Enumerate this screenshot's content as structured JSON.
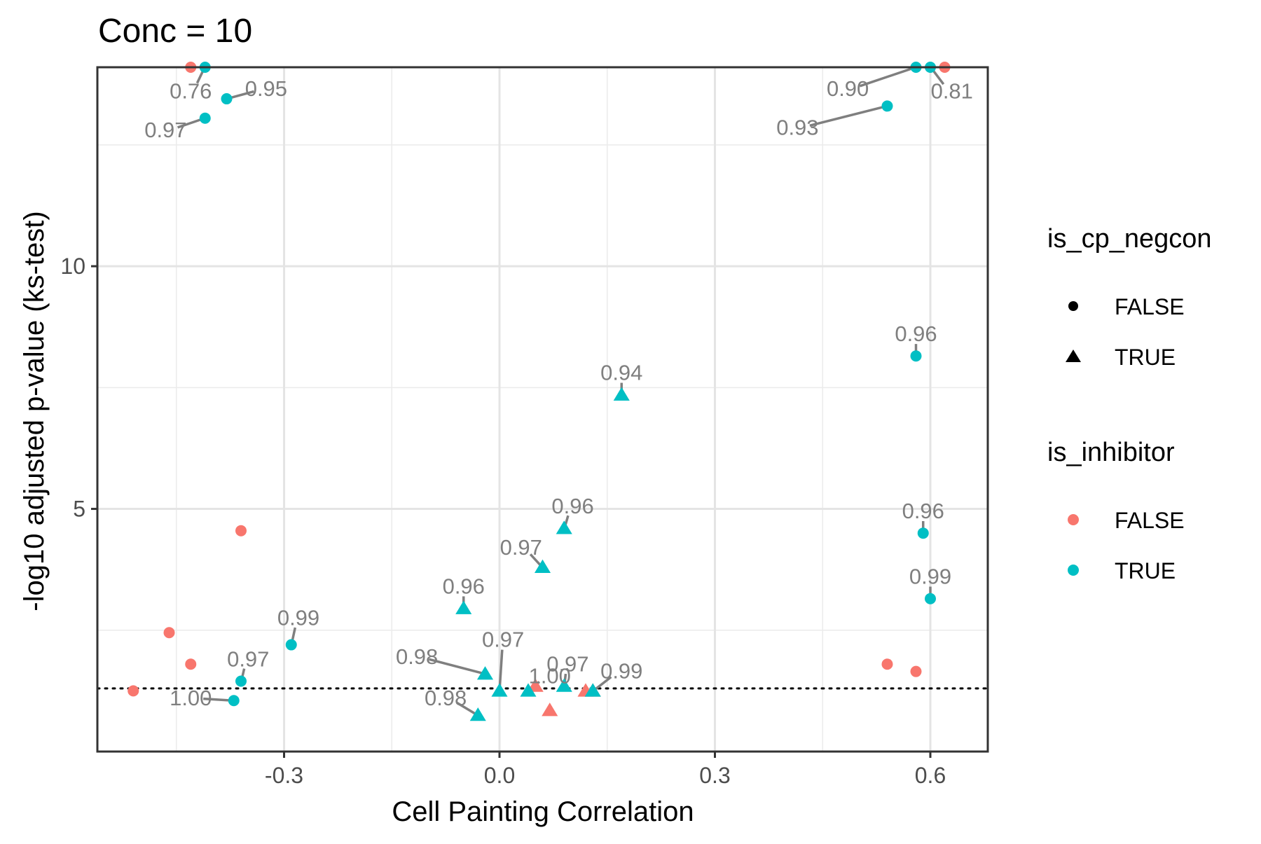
{
  "chart_data": {
    "type": "scatter",
    "title": "Conc = 10",
    "xlabel": "Cell Painting Correlation",
    "ylabel": "-log10 adjusted p-value (ks-test)",
    "xlim": [
      -0.56,
      0.68
    ],
    "ylim": [
      0.0,
      14.1
    ],
    "x_ticks": [
      -0.3,
      0.0,
      0.3,
      0.6
    ],
    "x_tick_labels": [
      "-0.3",
      "0.0",
      "0.3",
      "0.6"
    ],
    "y_ticks": [
      5,
      10
    ],
    "y_tick_labels": [
      "5",
      "10"
    ],
    "x_minor_grid": [
      -0.45,
      -0.15,
      0.15,
      0.45
    ],
    "y_minor_grid": [
      2.5,
      7.5,
      12.5
    ],
    "grid": true,
    "threshold_line": {
      "y": 1.3,
      "style": "dotted"
    },
    "colors": {
      "FALSE": "#F8766D",
      "TRUE": "#00BFC4"
    },
    "legend_placement": "right",
    "legends": [
      {
        "title": "is_cp_negcon",
        "key": "shape",
        "entries": [
          {
            "label": "FALSE",
            "symbol": "circle"
          },
          {
            "label": "TRUE",
            "symbol": "triangle"
          }
        ]
      },
      {
        "title": "is_inhibitor",
        "key": "color",
        "entries": [
          {
            "label": "FALSE",
            "color": "#F8766D"
          },
          {
            "label": "TRUE",
            "color": "#00BFC4"
          }
        ]
      }
    ],
    "points": [
      {
        "x": -0.43,
        "y": 14.1,
        "negcon": false,
        "inhibitor": false,
        "label": ""
      },
      {
        "x": -0.41,
        "y": 14.1,
        "negcon": false,
        "inhibitor": true,
        "label": "0.76",
        "label_dx": -0.02,
        "label_dy": -0.5
      },
      {
        "x": -0.38,
        "y": 13.45,
        "negcon": false,
        "inhibitor": true,
        "label": "0.95",
        "label_dx": 0.055,
        "label_dy": 0.2
      },
      {
        "x": -0.41,
        "y": 13.05,
        "negcon": false,
        "inhibitor": true,
        "label": "0.97",
        "label_dx": -0.055,
        "label_dy": -0.25
      },
      {
        "x": 0.58,
        "y": 14.1,
        "negcon": false,
        "inhibitor": true,
        "label": "0.90",
        "label_dx": -0.095,
        "label_dy": -0.45
      },
      {
        "x": 0.6,
        "y": 14.1,
        "negcon": false,
        "inhibitor": true,
        "label": "0.81",
        "label_dx": 0.03,
        "label_dy": -0.5
      },
      {
        "x": 0.62,
        "y": 14.1,
        "negcon": false,
        "inhibitor": false,
        "label": ""
      },
      {
        "x": 0.54,
        "y": 13.3,
        "negcon": false,
        "inhibitor": true,
        "label": "0.93",
        "label_dx": -0.125,
        "label_dy": -0.45
      },
      {
        "x": 0.58,
        "y": 8.15,
        "negcon": false,
        "inhibitor": true,
        "label": "0.96",
        "label_dx": 0.0,
        "label_dy": 0.45
      },
      {
        "x": 0.17,
        "y": 7.35,
        "negcon": true,
        "inhibitor": true,
        "label": "0.94",
        "label_dx": 0.0,
        "label_dy": 0.45
      },
      {
        "x": -0.36,
        "y": 4.55,
        "negcon": false,
        "inhibitor": false,
        "label": ""
      },
      {
        "x": 0.09,
        "y": 4.6,
        "negcon": true,
        "inhibitor": true,
        "label": "0.96",
        "label_dx": 0.012,
        "label_dy": 0.45
      },
      {
        "x": 0.59,
        "y": 4.5,
        "negcon": false,
        "inhibitor": true,
        "label": "0.96",
        "label_dx": 0.0,
        "label_dy": 0.45
      },
      {
        "x": 0.06,
        "y": 3.8,
        "negcon": true,
        "inhibitor": true,
        "label": "0.97",
        "label_dx": -0.03,
        "label_dy": 0.4
      },
      {
        "x": -0.05,
        "y": 2.95,
        "negcon": true,
        "inhibitor": true,
        "label": "0.96",
        "label_dx": 0.0,
        "label_dy": 0.45
      },
      {
        "x": 0.6,
        "y": 3.15,
        "negcon": false,
        "inhibitor": true,
        "label": "0.99",
        "label_dx": 0.0,
        "label_dy": 0.45
      },
      {
        "x": -0.46,
        "y": 2.45,
        "negcon": false,
        "inhibitor": false,
        "label": ""
      },
      {
        "x": -0.29,
        "y": 2.2,
        "negcon": false,
        "inhibitor": true,
        "label": "0.99",
        "label_dx": 0.01,
        "label_dy": 0.55
      },
      {
        "x": -0.43,
        "y": 1.8,
        "negcon": false,
        "inhibitor": false,
        "label": ""
      },
      {
        "x": -0.36,
        "y": 1.45,
        "negcon": false,
        "inhibitor": true,
        "label": "0.97",
        "label_dx": 0.01,
        "label_dy": 0.45
      },
      {
        "x": -0.51,
        "y": 1.25,
        "negcon": false,
        "inhibitor": false,
        "label": ""
      },
      {
        "x": -0.37,
        "y": 1.05,
        "negcon": false,
        "inhibitor": true,
        "label": "1.00",
        "label_dx": -0.06,
        "label_dy": 0.05
      },
      {
        "x": 0.05,
        "y": 1.35,
        "negcon": true,
        "inhibitor": false,
        "label": ""
      },
      {
        "x": 0.09,
        "y": 1.35,
        "negcon": true,
        "inhibitor": true,
        "label": "0.97",
        "label_dx": 0.005,
        "label_dy": 0.45
      },
      {
        "x": 0.12,
        "y": 1.25,
        "negcon": true,
        "inhibitor": false,
        "label": ""
      },
      {
        "x": -0.02,
        "y": 1.6,
        "negcon": true,
        "inhibitor": true,
        "label": "0.98",
        "label_dx": -0.095,
        "label_dy": 0.35
      },
      {
        "x": 0.0,
        "y": 1.25,
        "negcon": true,
        "inhibitor": true,
        "label": "0.97",
        "label_dx": 0.005,
        "label_dy": 1.05
      },
      {
        "x": 0.04,
        "y": 1.25,
        "negcon": true,
        "inhibitor": true,
        "label": "1.00",
        "label_dx": 0.03,
        "label_dy": 0.3
      },
      {
        "x": 0.13,
        "y": 1.25,
        "negcon": true,
        "inhibitor": false,
        "label": ""
      },
      {
        "x": 0.13,
        "y": 1.25,
        "negcon": true,
        "inhibitor": true,
        "label": "0.99",
        "label_dx": 0.04,
        "label_dy": 0.4
      },
      {
        "x": 0.07,
        "y": 0.85,
        "negcon": true,
        "inhibitor": false,
        "label": ""
      },
      {
        "x": -0.03,
        "y": 0.75,
        "negcon": true,
        "inhibitor": true,
        "label": "0.98",
        "label_dx": -0.045,
        "label_dy": 0.35
      },
      {
        "x": 0.54,
        "y": 1.8,
        "negcon": false,
        "inhibitor": false,
        "label": ""
      },
      {
        "x": 0.58,
        "y": 1.65,
        "negcon": false,
        "inhibitor": false,
        "label": ""
      }
    ]
  }
}
